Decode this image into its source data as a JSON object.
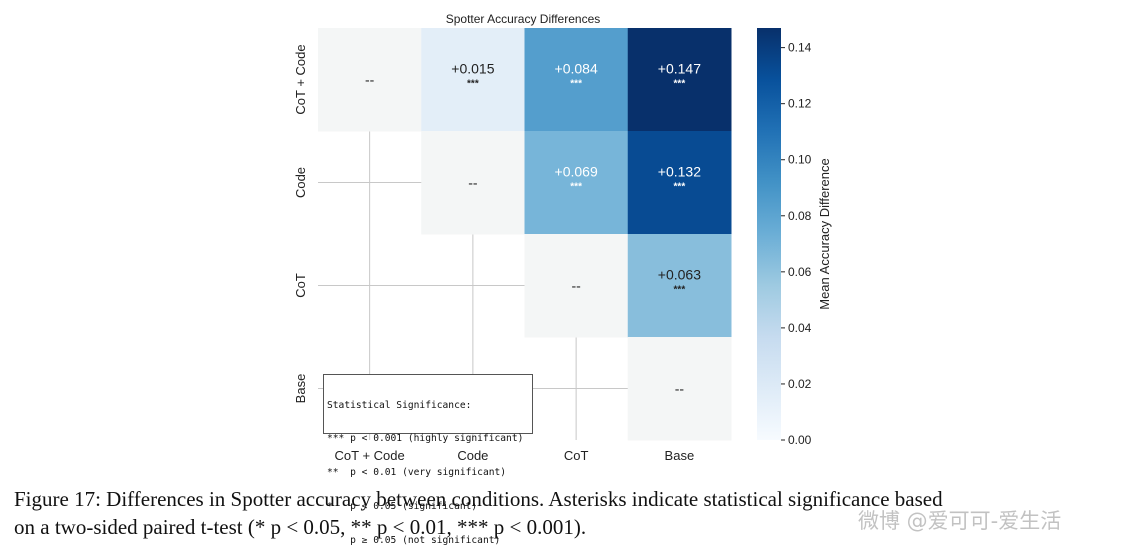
{
  "chart_data": {
    "type": "heatmap",
    "title": "Spotter Accuracy Differences",
    "rows": [
      "CoT + Code",
      "Code",
      "CoT",
      "Base"
    ],
    "columns": [
      "CoT + Code",
      "Code",
      "CoT",
      "Base"
    ],
    "cells": [
      {
        "row": 0,
        "col": 0,
        "value": 0.0,
        "label": "--",
        "stars": ""
      },
      {
        "row": 0,
        "col": 1,
        "value": 0.015,
        "label": "+0.015",
        "stars": "***"
      },
      {
        "row": 0,
        "col": 2,
        "value": 0.084,
        "label": "+0.084",
        "stars": "***"
      },
      {
        "row": 0,
        "col": 3,
        "value": 0.147,
        "label": "+0.147",
        "stars": "***"
      },
      {
        "row": 1,
        "col": 1,
        "value": 0.0,
        "label": "--",
        "stars": ""
      },
      {
        "row": 1,
        "col": 2,
        "value": 0.069,
        "label": "+0.069",
        "stars": "***"
      },
      {
        "row": 1,
        "col": 3,
        "value": 0.132,
        "label": "+0.132",
        "stars": "***"
      },
      {
        "row": 2,
        "col": 2,
        "value": 0.0,
        "label": "--",
        "stars": ""
      },
      {
        "row": 2,
        "col": 3,
        "value": 0.063,
        "label": "+0.063",
        "stars": "***"
      },
      {
        "row": 3,
        "col": 3,
        "value": 0.0,
        "label": "--",
        "stars": ""
      }
    ],
    "colorbar": {
      "label": "Mean Accuracy Difference",
      "range": [
        0.0,
        0.147
      ],
      "ticks": [
        0.0,
        0.02,
        0.04,
        0.06,
        0.08,
        0.1,
        0.12,
        0.14
      ],
      "tick_labels": [
        "0.00",
        "0.02",
        "0.04",
        "0.06",
        "0.08",
        "0.10",
        "0.12",
        "0.14"
      ],
      "colormap": "Blues"
    },
    "grid": true,
    "legend_placement": "bottom-left",
    "legend": {
      "title": "Statistical Significance:",
      "lines": [
        "*** p < 0.001 (highly significant)",
        "**  p < 0.01 (very significant)",
        "*   p < 0.05 (significant)",
        "    p ≥ 0.05 (not significant)"
      ]
    }
  },
  "caption": {
    "line1": "Figure 17: Differences in Spotter accuracy between conditions. Asterisks indicate statistical significance based",
    "line2": "on a two-sided paired t-test (* p < 0.05, ** p < 0.01, *** p < 0.001)."
  },
  "watermark": "微博 @爱可可-爱生活"
}
